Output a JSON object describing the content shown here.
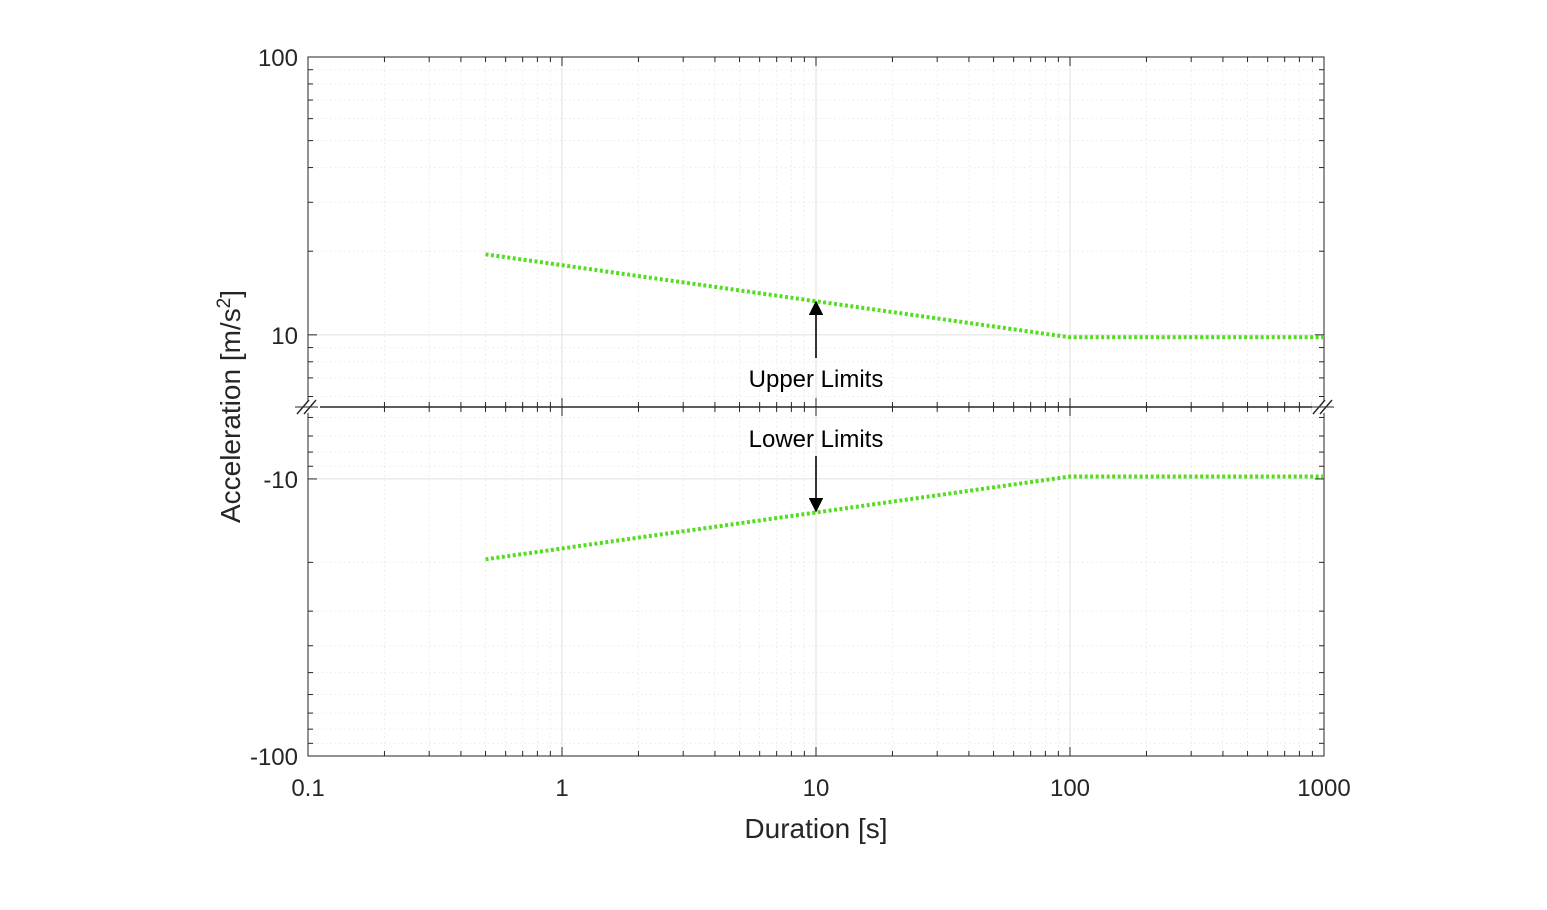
{
  "chart_data": {
    "type": "line",
    "xlabel": "Duration [s]",
    "ylabel": "Acceleration [m/s",
    "ylabel_superscript": "2",
    "ylabel_suffix": "]",
    "x_scale": "log",
    "xlim": [
      0.1,
      1000
    ],
    "xticks": [
      {
        "value": 0.1,
        "label": "0.1"
      },
      {
        "value": 1,
        "label": "1"
      },
      {
        "value": 10,
        "label": "10"
      },
      {
        "value": 100,
        "label": "100"
      },
      {
        "value": 1000,
        "label": "1000"
      }
    ],
    "grid": true,
    "axis_break": "between upper (positive) and lower (negative) log-scaled panels",
    "upper_panel": {
      "y_scale": "log",
      "ylim": [
        5.5,
        100
      ],
      "yticks": [
        {
          "value": 10,
          "label": "10"
        },
        {
          "value": 100,
          "label": "100"
        }
      ]
    },
    "lower_panel": {
      "y_scale": "log (magnitude)",
      "ylim": [
        -100,
        -5.5
      ],
      "yticks": [
        {
          "value": -10,
          "label": "-10"
        },
        {
          "value": -100,
          "label": "-100"
        }
      ]
    },
    "series": [
      {
        "color": "#55dd22",
        "style": "dotted",
        "x": [
          0.5,
          100,
          1000
        ],
        "y": [
          19.5,
          9.8,
          9.8
        ]
      },
      {
        "color": "#55dd22",
        "style": "dotted",
        "x": [
          0.5,
          100,
          1000
        ],
        "y": [
          -19.5,
          -9.8,
          -9.8
        ]
      }
    ],
    "annotations": [
      {
        "text": "Upper Limits",
        "x": 10,
        "arrow": "up",
        "panel": "upper"
      },
      {
        "text": "Lower Limits",
        "x": 10,
        "arrow": "down",
        "panel": "lower"
      }
    ]
  }
}
